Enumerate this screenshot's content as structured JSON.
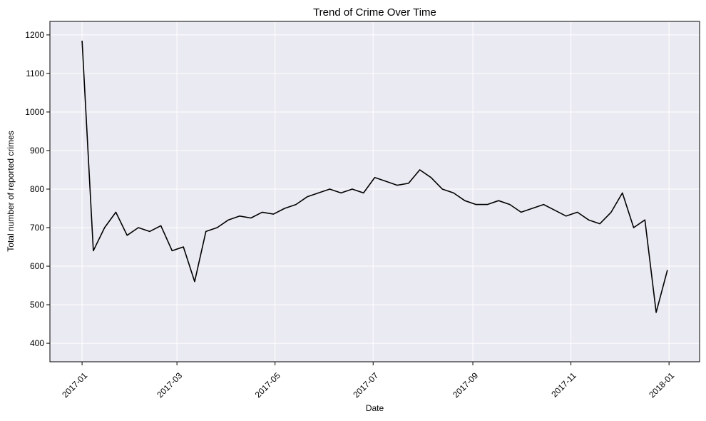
{
  "chart_data": {
    "type": "line",
    "title": "Trend of Crime Over Time",
    "xlabel": "Date",
    "ylabel": "Total number of reported crimes",
    "x_tick_labels": [
      "2017-01",
      "2017-03",
      "2017-05",
      "2017-07",
      "2017-09",
      "2017-11",
      "2018-01"
    ],
    "y_tick_labels": [
      "400",
      "500",
      "600",
      "700",
      "800",
      "900",
      "1000",
      "1100",
      "1200"
    ],
    "xlim": [
      "2016-12-12",
      "2018-01-20"
    ],
    "ylim": [
      352,
      1235
    ],
    "grid": true,
    "line_color": "#000000",
    "background_color": "#EAEAF2",
    "x": [
      "2017-01-01",
      "2017-01-08",
      "2017-01-15",
      "2017-01-22",
      "2017-01-29",
      "2017-02-05",
      "2017-02-12",
      "2017-02-19",
      "2017-02-26",
      "2017-03-05",
      "2017-03-12",
      "2017-03-19",
      "2017-03-26",
      "2017-04-02",
      "2017-04-09",
      "2017-04-16",
      "2017-04-23",
      "2017-04-30",
      "2017-05-07",
      "2017-05-14",
      "2017-05-21",
      "2017-05-28",
      "2017-06-04",
      "2017-06-11",
      "2017-06-18",
      "2017-06-25",
      "2017-07-02",
      "2017-07-09",
      "2017-07-16",
      "2017-07-23",
      "2017-07-30",
      "2017-08-06",
      "2017-08-13",
      "2017-08-20",
      "2017-08-27",
      "2017-09-03",
      "2017-09-10",
      "2017-09-17",
      "2017-09-24",
      "2017-10-01",
      "2017-10-08",
      "2017-10-15",
      "2017-10-22",
      "2017-10-29",
      "2017-11-05",
      "2017-11-12",
      "2017-11-19",
      "2017-11-26",
      "2017-12-03",
      "2017-12-10",
      "2017-12-17",
      "2017-12-24",
      "2017-12-31"
    ],
    "values": [
      1185,
      640,
      700,
      740,
      680,
      700,
      690,
      705,
      640,
      650,
      560,
      690,
      700,
      720,
      730,
      725,
      740,
      735,
      750,
      760,
      780,
      790,
      800,
      790,
      800,
      790,
      830,
      820,
      810,
      815,
      850,
      830,
      800,
      790,
      770,
      760,
      760,
      770,
      760,
      740,
      750,
      760,
      745,
      730,
      740,
      720,
      710,
      740,
      790,
      700,
      720,
      480,
      590
    ]
  }
}
